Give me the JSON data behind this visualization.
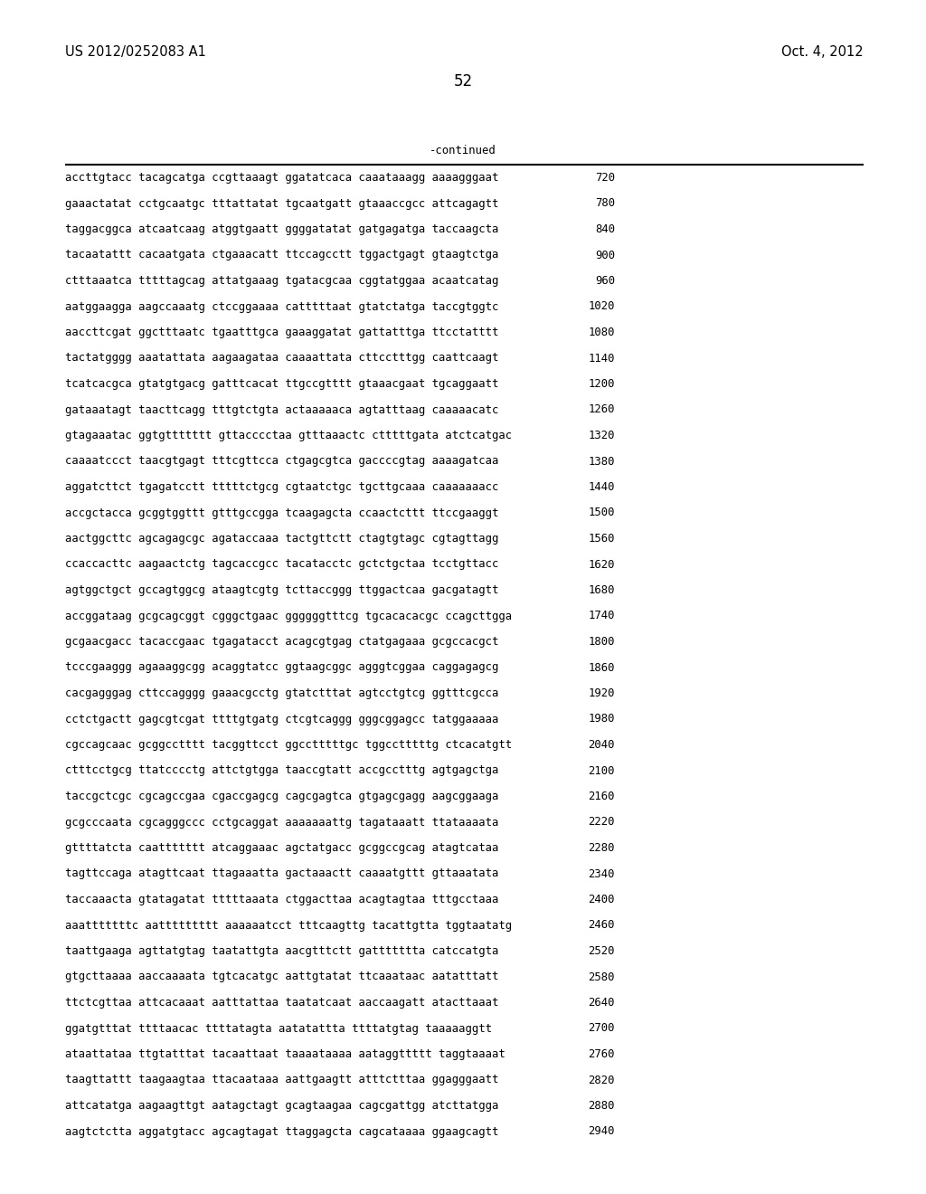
{
  "header_left": "US 2012/0252083 A1",
  "header_right": "Oct. 4, 2012",
  "page_number": "52",
  "continued_label": "-continued",
  "background_color": "#ffffff",
  "text_color": "#000000",
  "font_size_header": 10.5,
  "font_size_page": 12,
  "font_size_body": 8.8,
  "font_size_seq": 8.8,
  "sequence_lines": [
    [
      "accttgtacc tacagcatga ccgttaaagt ggatatcaca caaataaagg aaaagggaat",
      "720"
    ],
    [
      "gaaactatat cctgcaatgc tttattatat tgcaatgatt gtaaaccgcc attcagagtt",
      "780"
    ],
    [
      "taggacggca atcaatcaag atggtgaatt ggggatatat gatgagatga taccaagcta",
      "840"
    ],
    [
      "tacaatattt cacaatgata ctgaaacatt ttccagcctt tggactgagt gtaagtctga",
      "900"
    ],
    [
      "ctttaaatca tttttagcag attatgaaag tgatacgcaa cggtatggaa acaatcatag",
      "960"
    ],
    [
      "aatggaagga aagccaaatg ctccggaaaa catttttaat gtatctatga taccgtggtc",
      "1020"
    ],
    [
      "aaccttcgat ggctttaatc tgaatttgca gaaaggatat gattatttga ttcctatttt",
      "1080"
    ],
    [
      "tactatgggg aaatattata aagaagataa caaaattata cttcctttgg caattcaagt",
      "1140"
    ],
    [
      "tcatcacgca gtatgtgacg gatttcacat ttgccgtttt gtaaacgaat tgcaggaatt",
      "1200"
    ],
    [
      "gataaatagt taacttcagg tttgtctgta actaaaaaca agtatttaag caaaaacatc",
      "1260"
    ],
    [
      "gtagaaatac ggtgttttttt gttacccctaa gtttaaactc ctttttgata atctcatgac",
      "1320"
    ],
    [
      "caaaatccct taacgtgagt tttcgttcca ctgagcgtca gaccccgtag aaaagatcaa",
      "1380"
    ],
    [
      "aggatcttct tgagatcctt tttttctgcg cgtaatctgc tgcttgcaaa caaaaaaacc",
      "1440"
    ],
    [
      "accgctacca gcggtggttt gtttgccgga tcaagagcta ccaactcttt ttccgaaggt",
      "1500"
    ],
    [
      "aactggcttc agcagagcgc agataccaaa tactgttctt ctagtgtagc cgtagttagg",
      "1560"
    ],
    [
      "ccaccacttc aagaactctg tagcaccgcc tacatacctc gctctgctaa tcctgttacc",
      "1620"
    ],
    [
      "agtggctgct gccagtggcg ataagtcgtg tcttaccggg ttggactcaa gacgatagtt",
      "1680"
    ],
    [
      "accggataag gcgcagcggt cgggctgaac ggggggtttcg tgcacacacgc ccagcttgga",
      "1740"
    ],
    [
      "gcgaacgacc tacaccgaac tgagatacct acagcgtgag ctatgagaaa gcgccacgct",
      "1800"
    ],
    [
      "tcccgaaggg agaaaggcgg acaggtatcc ggtaagcggc agggtcggaa caggagagcg",
      "1860"
    ],
    [
      "cacgagggag cttccagggg gaaacgcctg gtatctttat agtcctgtcg ggtttcgcca",
      "1920"
    ],
    [
      "cctctgactt gagcgtcgat ttttgtgatg ctcgtcaggg gggcggagcc tatggaaaaa",
      "1980"
    ],
    [
      "cgccagcaac gcggcctttt tacggttcct ggcctttttgc tggcctttttg ctcacatgtt",
      "2040"
    ],
    [
      "ctttcctgcg ttatcccctg attctgtgga taaccgtatt accgcctttg agtgagctga",
      "2100"
    ],
    [
      "taccgctcgc cgcagccgaa cgaccgagcg cagcgagtca gtgagcgagg aagcggaaga",
      "2160"
    ],
    [
      "gcgcccaata cgcagggccc cctgcaggat aaaaaaattg tagataaatt ttataaaata",
      "2220"
    ],
    [
      "gttttatcta caattttttt atcaggaaac agctatgacc gcggccgcag atagtcataa",
      "2280"
    ],
    [
      "tagttccaga atagttcaat ttagaaatta gactaaactt caaaatgttt gttaaatata",
      "2340"
    ],
    [
      "taccaaacta gtatagatat tttttaaata ctggacttaa acagtagtaa tttgcctaaa",
      "2400"
    ],
    [
      "aaatttttttc aattttttttt aaaaaatcct tttcaagttg tacattgtta tggtaatatg",
      "2460"
    ],
    [
      "taattgaaga agttatgtag taatattgta aacgtttctt gattttttta catccatgta",
      "2520"
    ],
    [
      "gtgcttaaaa aaccaaaata tgtcacatgc aattgtatat ttcaaataac aatatttatt",
      "2580"
    ],
    [
      "ttctcgttaa attcacaaat aatttattaa taatatcaat aaccaagatt atacttaaat",
      "2640"
    ],
    [
      "ggatgtttat ttttaacac ttttatagta aatatattta ttttatgtag taaaaaggtt",
      "2700"
    ],
    [
      "ataattataa ttgtatttat tacaattaat taaaataaaa aataggttttt taggtaaaat",
      "2760"
    ],
    [
      "taagttattt taagaagtaa ttacaataaa aattgaagtt atttctttaa ggagggaatt",
      "2820"
    ],
    [
      "attcatatga aagaagttgt aatagctagt gcagtaagaa cagcgattgg atcttatgga",
      "2880"
    ],
    [
      "aagtctctta aggatgtacc agcagtagat ttaggagcta cagcataaaa ggaagcagtt",
      "2940"
    ]
  ]
}
